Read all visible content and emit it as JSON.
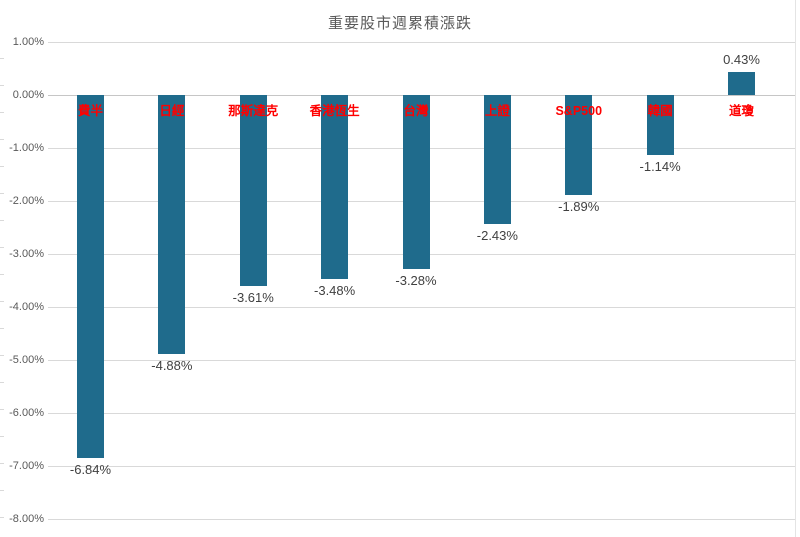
{
  "title": "重要股市週累積漲跌",
  "colors": {
    "bar": "#1f6b8c",
    "gridline": "#d9d9d9",
    "zero_line": "#c6c6c6",
    "category_label": "#ff0000",
    "value_label": "#404040",
    "axis_text": "#595959",
    "title_text": "#595959"
  },
  "chart_data": {
    "type": "bar",
    "title": "重要股市週累積漲跌",
    "categories": [
      "費半",
      "日經",
      "那斯達克",
      "香港恆生",
      "台灣",
      "上證",
      "S&P500",
      "韓國",
      "道瓊"
    ],
    "values": [
      -6.84,
      -4.88,
      -3.61,
      -3.48,
      -3.28,
      -2.43,
      -1.89,
      -1.14,
      0.43
    ],
    "value_labels": [
      "-6.84%",
      "-4.88%",
      "-3.61%",
      "-3.48%",
      "-3.28%",
      "-2.43%",
      "-1.89%",
      "-1.14%",
      "0.43%"
    ],
    "xlabel": "",
    "ylabel": "",
    "ylim": [
      -8.0,
      1.0
    ],
    "ytick_step": 1.0,
    "ytick_labels": [
      "1.00%",
      "0.00%",
      "-1.00%",
      "-2.00%",
      "-3.00%",
      "-4.00%",
      "-5.00%",
      "-6.00%",
      "-7.00%",
      "-8.00%"
    ],
    "ytick_values": [
      1.0,
      0.0,
      -1.0,
      -2.0,
      -3.0,
      -4.0,
      -5.0,
      -6.0,
      -7.0,
      -8.0
    ],
    "grid": true,
    "legend": "none",
    "category_label_position": "below-zero-axis",
    "bar_color": "#1f6b8c"
  }
}
